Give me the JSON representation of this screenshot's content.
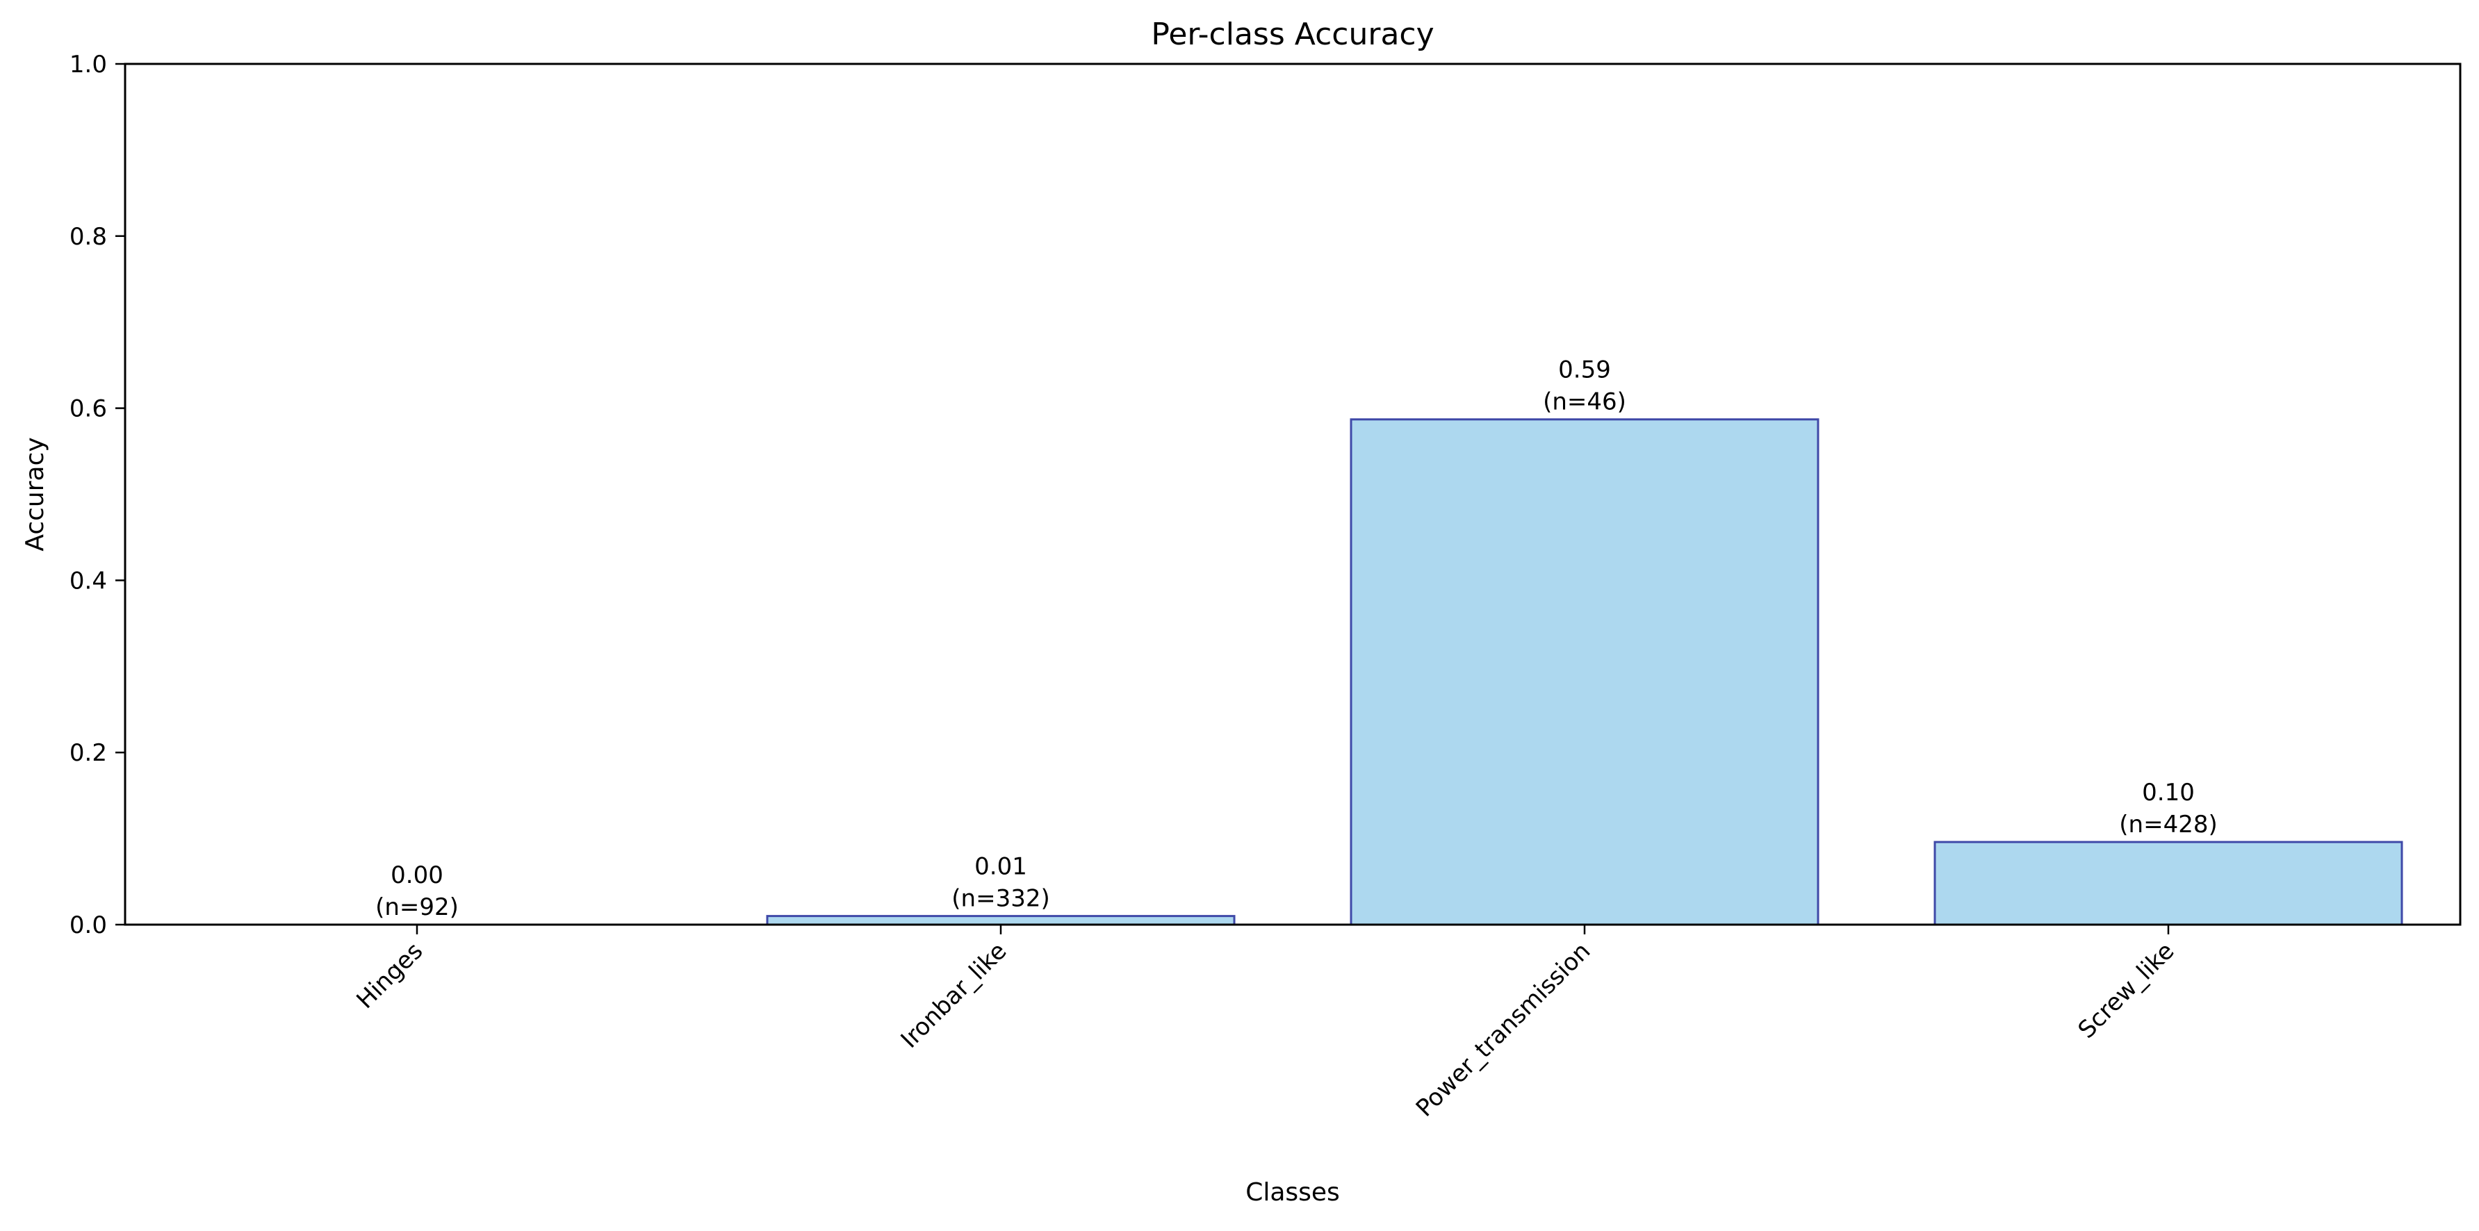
{
  "chart_data": {
    "type": "bar",
    "title": "Per-class Accuracy",
    "xlabel": "Classes",
    "ylabel": "Accuracy",
    "categories": [
      "Hinges",
      "Ironbar_like",
      "Power_transmission",
      "Screw_like"
    ],
    "values": [
      0.0,
      0.01,
      0.587,
      0.096
    ],
    "value_labels": [
      "0.00",
      "0.01",
      "0.59",
      "0.10"
    ],
    "count_labels": [
      "(n=92)",
      "(n=332)",
      "(n=46)",
      "(n=428)"
    ],
    "ylim": [
      0,
      1.0
    ],
    "yticks": [
      0.0,
      0.2,
      0.4,
      0.6,
      0.8,
      1.0
    ],
    "ytick_labels": [
      "0.0",
      "0.2",
      "0.4",
      "0.6",
      "0.8",
      "1.0"
    ],
    "grid": false,
    "legend": "none",
    "colors": {
      "bar_fill": "#add8ef",
      "bar_edge": "#3f49a8",
      "axis": "#000000"
    }
  }
}
